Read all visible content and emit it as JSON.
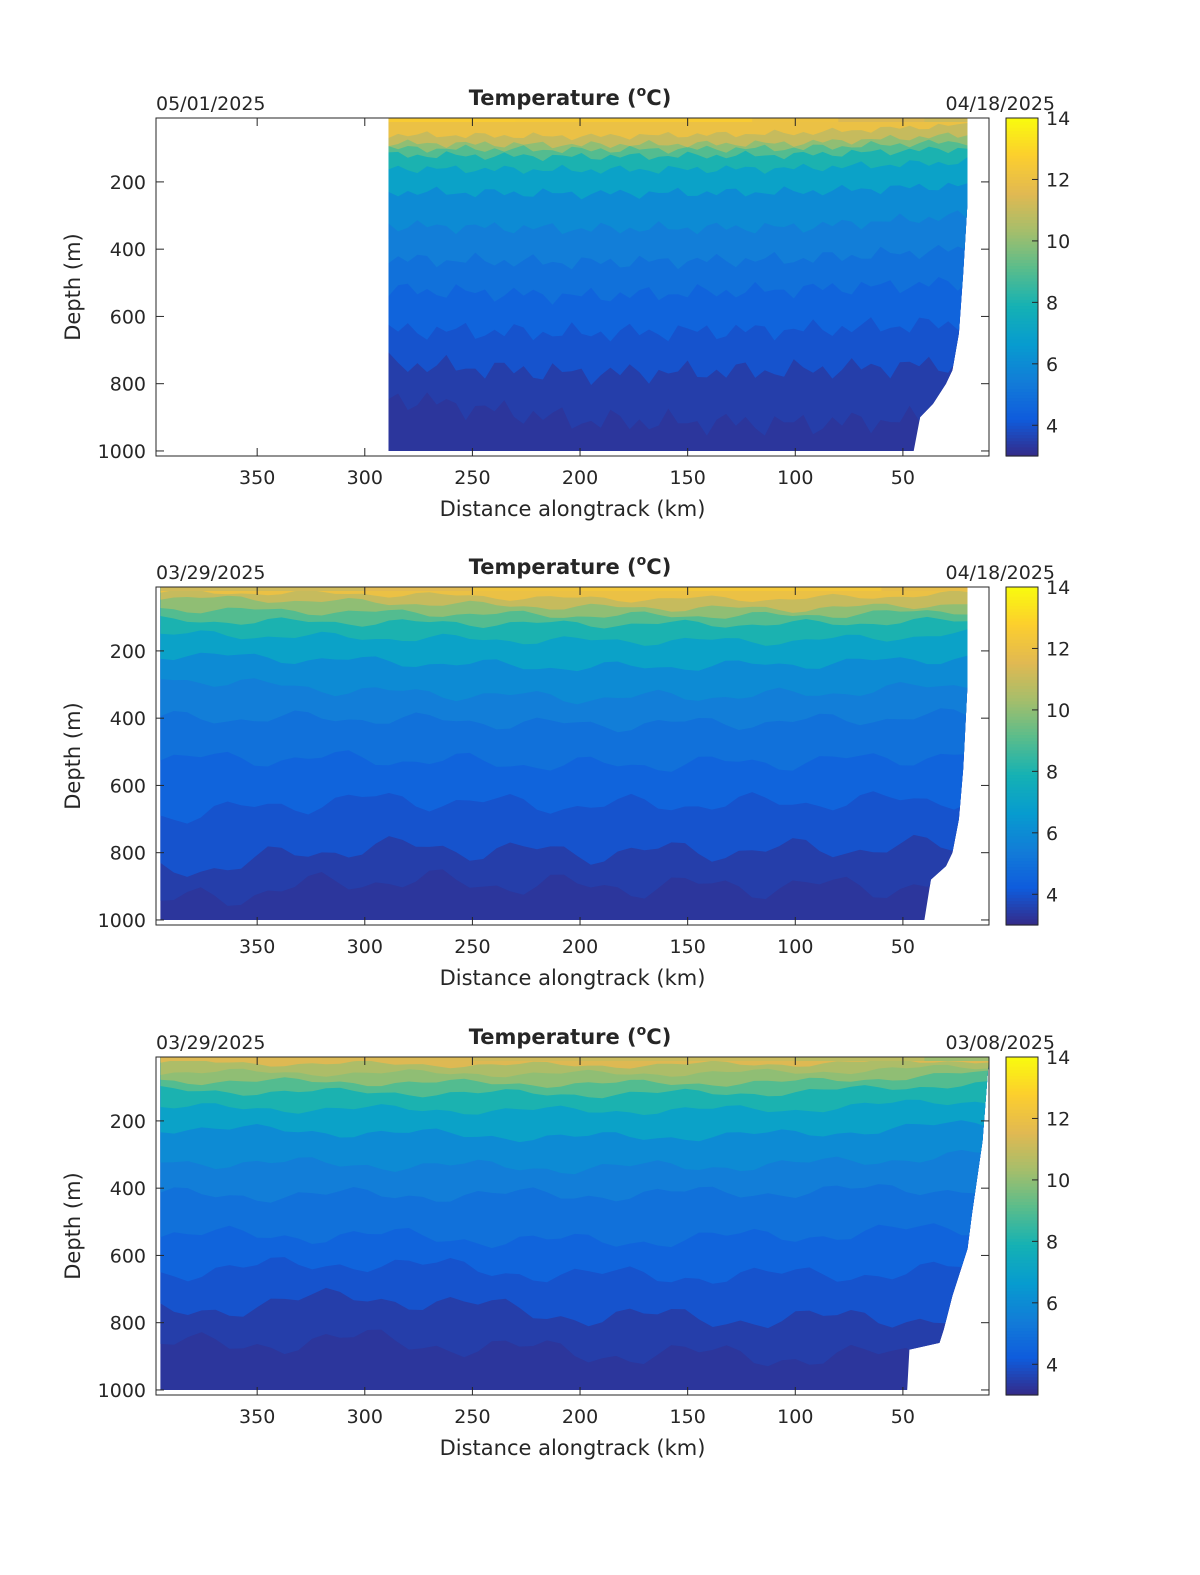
{
  "chart_data": [
    {
      "type": "heatmap",
      "title": "Temperature (°C)",
      "title_text": "Temperature (",
      "title_unit_superscript": "o",
      "title_unit": "C)",
      "date_left": "05/01/2025",
      "date_right": "04/18/2025",
      "xlabel": "Distance alongtrack (km)",
      "ylabel": "Depth (m)",
      "xlim": [
        397,
        10
      ],
      "x_reversed": true,
      "ylim": [
        10,
        1015
      ],
      "y_reversed": true,
      "xticks": [
        350,
        300,
        250,
        200,
        150,
        100,
        50
      ],
      "yticks": [
        200,
        400,
        600,
        800,
        1000
      ],
      "colorbar": {
        "ticks": [
          4,
          6,
          8,
          10,
          12,
          14
        ],
        "range": [
          3,
          14
        ],
        "colormap": "parula"
      },
      "data_extent_km": [
        289,
        20
      ],
      "bottom_edge": [
        [
          289,
          1000
        ],
        [
          45,
          1000
        ],
        [
          42,
          900
        ],
        [
          36,
          860
        ],
        [
          30,
          800
        ],
        [
          27,
          760
        ],
        [
          24,
          650
        ],
        [
          22,
          470
        ],
        [
          20,
          260
        ],
        [
          20,
          10
        ]
      ],
      "contour_depths": [
        {
          "temp": 12,
          "depths": [
            [
              289,
              60
            ],
            [
              200,
              65
            ],
            [
              100,
              55
            ],
            [
              20,
              30
            ]
          ]
        },
        {
          "temp": 11,
          "depths": [
            [
              289,
              85
            ],
            [
              200,
              90
            ],
            [
              100,
              85
            ],
            [
              20,
              60
            ]
          ]
        },
        {
          "temp": 10,
          "depths": [
            [
              289,
              100
            ],
            [
              200,
              105
            ],
            [
              100,
              100
            ],
            [
              20,
              80
            ]
          ]
        },
        {
          "temp": 9,
          "depths": [
            [
              289,
              120
            ],
            [
              200,
              125
            ],
            [
              100,
              120
            ],
            [
              20,
              100
            ]
          ]
        },
        {
          "temp": 8,
          "depths": [
            [
              289,
              160
            ],
            [
              200,
              165
            ],
            [
              100,
              160
            ],
            [
              20,
              140
            ]
          ]
        },
        {
          "temp": 7,
          "depths": [
            [
              289,
              230
            ],
            [
              200,
              235
            ],
            [
              100,
              230
            ],
            [
              20,
              210
            ]
          ]
        },
        {
          "temp": 6,
          "depths": [
            [
              289,
              330
            ],
            [
              200,
              340
            ],
            [
              100,
              335
            ],
            [
              20,
              300
            ]
          ]
        },
        {
          "temp": 5.5,
          "depths": [
            [
              289,
              430
            ],
            [
              200,
              440
            ],
            [
              100,
              430
            ],
            [
              20,
              400
            ]
          ]
        },
        {
          "temp": 5,
          "depths": [
            [
              289,
              520
            ],
            [
              200,
              540
            ],
            [
              100,
              520
            ],
            [
              20,
              500
            ]
          ]
        },
        {
          "temp": 4.5,
          "depths": [
            [
              289,
              640
            ],
            [
              200,
              650
            ],
            [
              100,
              640
            ],
            [
              20,
              620
            ]
          ]
        },
        {
          "temp": 4,
          "depths": [
            [
              289,
              740
            ],
            [
              200,
              770
            ],
            [
              100,
              760
            ],
            [
              20,
              740
            ]
          ]
        },
        {
          "temp": 3.5,
          "depths": [
            [
              289,
              840
            ],
            [
              200,
              910
            ],
            [
              100,
              920
            ],
            [
              20,
              900
            ]
          ]
        }
      ],
      "surface_temps": [
        [
          289,
          12.6
        ],
        [
          230,
          12.6
        ],
        [
          200,
          12.4
        ],
        [
          150,
          12.6
        ],
        [
          120,
          12.6
        ],
        [
          80,
          11.6
        ],
        [
          40,
          11.3
        ],
        [
          20,
          11.0
        ]
      ],
      "bottom_temp": 3.3
    },
    {
      "type": "heatmap",
      "title": "Temperature (°C)",
      "title_text": "Temperature (",
      "title_unit_superscript": "o",
      "title_unit": "C)",
      "date_left": "03/29/2025",
      "date_right": "04/18/2025",
      "xlabel": "Distance alongtrack (km)",
      "ylabel": "Depth (m)",
      "xlim": [
        397,
        10
      ],
      "x_reversed": true,
      "ylim": [
        10,
        1015
      ],
      "y_reversed": true,
      "xticks": [
        350,
        300,
        250,
        200,
        150,
        100,
        50
      ],
      "yticks": [
        200,
        400,
        600,
        800,
        1000
      ],
      "colorbar": {
        "ticks": [
          4,
          6,
          8,
          10,
          12,
          14
        ],
        "range": [
          3,
          14
        ],
        "colormap": "parula"
      },
      "data_extent_km": [
        395,
        20
      ],
      "bottom_edge": [
        [
          395,
          1000
        ],
        [
          40,
          1000
        ],
        [
          37,
          880
        ],
        [
          30,
          840
        ],
        [
          27,
          800
        ],
        [
          24,
          700
        ],
        [
          22,
          550
        ],
        [
          20,
          300
        ],
        [
          20,
          10
        ]
      ],
      "contour_depths": [
        {
          "temp": 12,
          "depths": [
            [
              395,
              25
            ],
            [
              300,
              30
            ],
            [
              200,
              45
            ],
            [
              100,
              45
            ],
            [
              20,
              30
            ]
          ]
        },
        {
          "temp": 11,
          "depths": [
            [
              395,
              40
            ],
            [
              300,
              55
            ],
            [
              200,
              70
            ],
            [
              100,
              75
            ],
            [
              20,
              60
            ]
          ]
        },
        {
          "temp": 10,
          "depths": [
            [
              395,
              75
            ],
            [
              300,
              85
            ],
            [
              200,
              95
            ],
            [
              100,
              95
            ],
            [
              20,
              80
            ]
          ]
        },
        {
          "temp": 9,
          "depths": [
            [
              395,
              110
            ],
            [
              300,
              115
            ],
            [
              200,
              120
            ],
            [
              100,
              120
            ],
            [
              20,
              110
            ]
          ]
        },
        {
          "temp": 8,
          "depths": [
            [
              395,
              150
            ],
            [
              300,
              160
            ],
            [
              200,
              170
            ],
            [
              100,
              170
            ],
            [
              20,
              150
            ]
          ]
        },
        {
          "temp": 7,
          "depths": [
            [
              395,
              210
            ],
            [
              300,
              230
            ],
            [
              200,
              250
            ],
            [
              100,
              240
            ],
            [
              20,
              220
            ]
          ]
        },
        {
          "temp": 6,
          "depths": [
            [
              395,
              280
            ],
            [
              300,
              320
            ],
            [
              200,
              340
            ],
            [
              100,
              330
            ],
            [
              20,
              300
            ]
          ]
        },
        {
          "temp": 5.5,
          "depths": [
            [
              395,
              400
            ],
            [
              300,
              400
            ],
            [
              200,
              420
            ],
            [
              100,
              410
            ],
            [
              20,
              390
            ]
          ]
        },
        {
          "temp": 5,
          "depths": [
            [
              395,
              520
            ],
            [
              300,
              520
            ],
            [
              200,
              540
            ],
            [
              100,
              530
            ],
            [
              20,
              510
            ]
          ]
        },
        {
          "temp": 4.5,
          "depths": [
            [
              395,
              690
            ],
            [
              300,
              640
            ],
            [
              200,
              660
            ],
            [
              100,
              650
            ],
            [
              20,
              640
            ]
          ]
        },
        {
          "temp": 4,
          "depths": [
            [
              395,
              860
            ],
            [
              300,
              780
            ],
            [
              200,
              800
            ],
            [
              100,
              790
            ],
            [
              20,
              780
            ]
          ]
        },
        {
          "temp": 3.5,
          "depths": [
            [
              395,
              950
            ],
            [
              300,
              880
            ],
            [
              200,
              900
            ],
            [
              100,
              900
            ],
            [
              20,
              900
            ]
          ]
        }
      ],
      "surface_temps": [
        [
          395,
          11.3
        ],
        [
          300,
          11.1
        ],
        [
          250,
          12.1
        ],
        [
          200,
          12.3
        ],
        [
          150,
          12.4
        ],
        [
          100,
          12.5
        ],
        [
          60,
          12.2
        ],
        [
          20,
          11.5
        ]
      ],
      "bottom_temp": 3.3
    },
    {
      "type": "heatmap",
      "title": "Temperature (°C)",
      "title_text": "Temperature (",
      "title_unit_superscript": "o",
      "title_unit": "C)",
      "date_left": "03/29/2025",
      "date_right": "03/08/2025",
      "xlabel": "Distance alongtrack (km)",
      "ylabel": "Depth (m)",
      "xlim": [
        397,
        10
      ],
      "x_reversed": true,
      "ylim": [
        10,
        1015
      ],
      "y_reversed": true,
      "xticks": [
        350,
        300,
        250,
        200,
        150,
        100,
        50
      ],
      "yticks": [
        200,
        400,
        600,
        800,
        1000
      ],
      "colorbar": {
        "ticks": [
          4,
          6,
          8,
          10,
          12,
          14
        ],
        "range": [
          3,
          14
        ],
        "colormap": "parula"
      },
      "data_extent_km": [
        395,
        10
      ],
      "bottom_edge": [
        [
          395,
          1000
        ],
        [
          48,
          1000
        ],
        [
          47,
          880
        ],
        [
          33,
          860
        ],
        [
          31,
          820
        ],
        [
          27,
          720
        ],
        [
          24,
          660
        ],
        [
          20,
          580
        ],
        [
          18,
          480
        ],
        [
          13,
          260
        ],
        [
          10,
          10
        ]
      ],
      "contour_depths": [
        {
          "temp": 11.5,
          "depths": [
            [
              395,
              25
            ],
            [
              320,
              30
            ],
            [
              200,
              35
            ],
            [
              100,
              30
            ],
            [
              20,
              20
            ]
          ]
        },
        {
          "temp": 10.5,
          "depths": [
            [
              395,
              55
            ],
            [
              200,
              60
            ],
            [
              100,
              55
            ],
            [
              20,
              40
            ]
          ]
        },
        {
          "temp": 10,
          "depths": [
            [
              395,
              80
            ],
            [
              200,
              90
            ],
            [
              100,
              85
            ],
            [
              20,
              60
            ]
          ]
        },
        {
          "temp": 9,
          "depths": [
            [
              395,
              110
            ],
            [
              200,
              120
            ],
            [
              100,
              115
            ],
            [
              20,
              90
            ]
          ]
        },
        {
          "temp": 8,
          "depths": [
            [
              395,
              160
            ],
            [
              200,
              170
            ],
            [
              100,
              165
            ],
            [
              20,
              140
            ]
          ]
        },
        {
          "temp": 7,
          "depths": [
            [
              395,
              220
            ],
            [
              200,
              250
            ],
            [
              100,
              240
            ],
            [
              20,
              210
            ]
          ]
        },
        {
          "temp": 6,
          "depths": [
            [
              395,
              320
            ],
            [
              200,
              340
            ],
            [
              100,
              330
            ],
            [
              20,
              300
            ]
          ]
        },
        {
          "temp": 5.5,
          "depths": [
            [
              395,
              420
            ],
            [
              200,
              420
            ],
            [
              100,
              410
            ],
            [
              20,
              400
            ]
          ]
        },
        {
          "temp": 5,
          "depths": [
            [
              395,
              540
            ],
            [
              300,
              540
            ],
            [
              200,
              560
            ],
            [
              100,
              540
            ],
            [
              20,
              520
            ]
          ]
        },
        {
          "temp": 4.5,
          "depths": [
            [
              395,
              650
            ],
            [
              300,
              620
            ],
            [
              200,
              660
            ],
            [
              100,
              660
            ],
            [
              20,
              640
            ]
          ]
        },
        {
          "temp": 4,
          "depths": [
            [
              395,
              770
            ],
            [
              300,
              720
            ],
            [
              200,
              780
            ],
            [
              100,
              790
            ],
            [
              20,
              780
            ]
          ]
        },
        {
          "temp": 3.5,
          "depths": [
            [
              395,
              870
            ],
            [
              300,
              850
            ],
            [
              200,
              890
            ],
            [
              100,
              900
            ],
            [
              20,
              900
            ]
          ]
        }
      ],
      "surface_temps": [
        [
          395,
          11.3
        ],
        [
          320,
          11.7
        ],
        [
          250,
          11.2
        ],
        [
          200,
          11.2
        ],
        [
          100,
          11.0
        ],
        [
          40,
          10.6
        ],
        [
          10,
          9.8
        ]
      ],
      "bottom_temp": 3.3
    }
  ]
}
